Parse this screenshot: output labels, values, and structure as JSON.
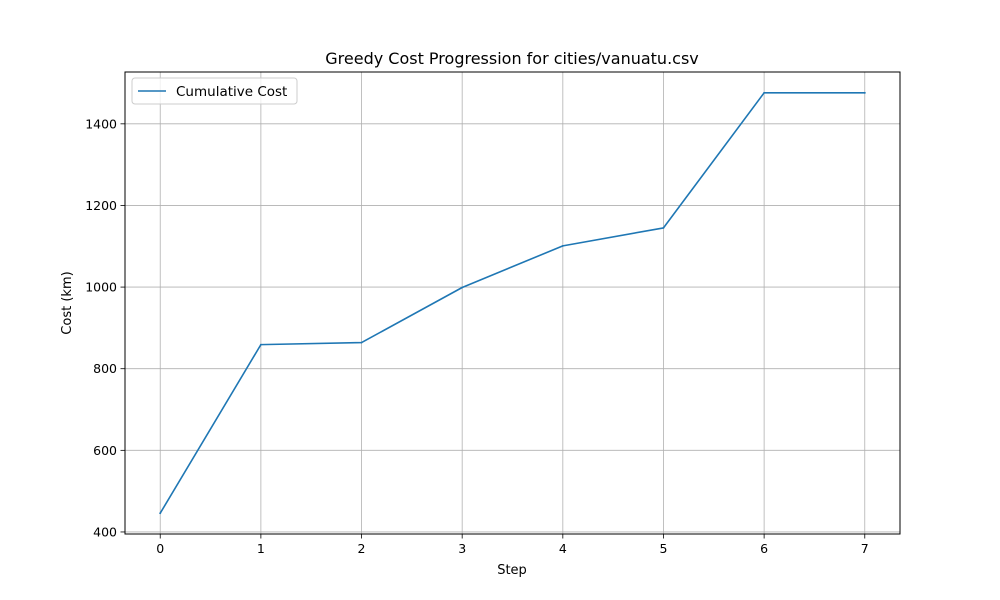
{
  "chart_data": {
    "type": "line",
    "title": "Greedy Cost Progression for cities/vanuatu.csv",
    "xlabel": "Step",
    "ylabel": "Cost (km)",
    "x": [
      0,
      1,
      2,
      3,
      4,
      5,
      6,
      7
    ],
    "series": [
      {
        "name": "Cumulative Cost",
        "color": "#1f77b4",
        "values": [
          446,
          859,
          864,
          999,
          1101,
          1145,
          1476,
          1476
        ]
      }
    ],
    "xticks": [
      "0",
      "1",
      "2",
      "3",
      "4",
      "5",
      "6",
      "7"
    ],
    "yticks": [
      "400",
      "600",
      "800",
      "1000",
      "1200",
      "1400"
    ],
    "xlim": [
      -0.35,
      7.35
    ],
    "ylim": [
      395,
      1527
    ],
    "grid": true,
    "legend_position": "top-left"
  }
}
